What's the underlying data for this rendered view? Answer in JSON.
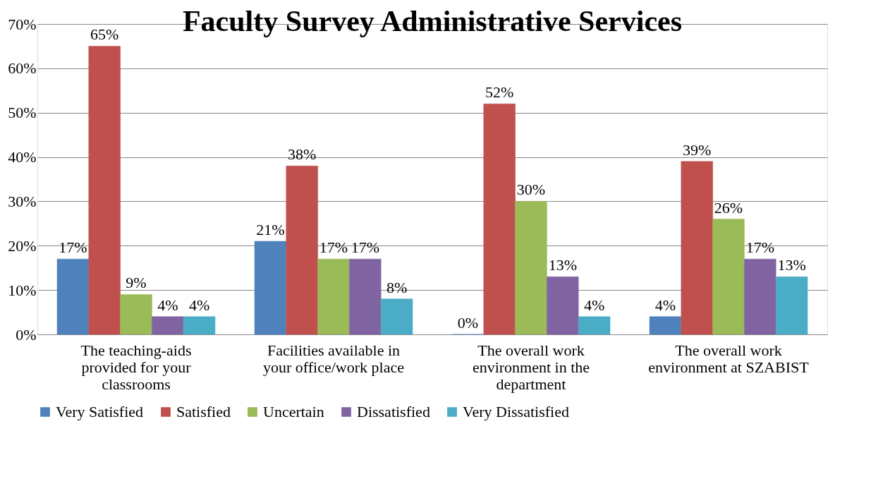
{
  "chart_data": {
    "type": "bar",
    "title": "Faculty Survey Administrative Services",
    "categories": [
      "The teaching-aids provided for your classrooms",
      "Facilities available in your office/work place",
      "The overall work environment in the department",
      "The overall work environment at SZABIST"
    ],
    "series": [
      {
        "name": "Very Satisfied",
        "color": "#4f81bd",
        "values": [
          17,
          21,
          0,
          4
        ],
        "value_labels": [
          "17%",
          "21%",
          "0%",
          "4%"
        ]
      },
      {
        "name": "Satisfied",
        "color": "#c0504d",
        "values": [
          65,
          38,
          52,
          39
        ],
        "value_labels": [
          "65%",
          "38%",
          "52%",
          "39%"
        ]
      },
      {
        "name": "Uncertain",
        "color": "#9bbb59",
        "values": [
          9,
          17,
          30,
          26
        ],
        "value_labels": [
          "9%",
          "17%",
          "30%",
          "26%"
        ]
      },
      {
        "name": "Dissatisfied",
        "color": "#8064a2",
        "values": [
          4,
          17,
          13,
          17
        ],
        "value_labels": [
          "4%",
          "17%",
          "13%",
          "17%"
        ]
      },
      {
        "name": "Very Dissatisfied",
        "color": "#4bacc6",
        "values": [
          4,
          8,
          4,
          13
        ],
        "value_labels": [
          "4%",
          "8%",
          "4%",
          "13%"
        ]
      }
    ],
    "ylim": [
      0,
      70
    ],
    "yticks": [
      {
        "value": 0,
        "label": "0%"
      },
      {
        "value": 10,
        "label": "10%"
      },
      {
        "value": 20,
        "label": "20%"
      },
      {
        "value": 30,
        "label": "30%"
      },
      {
        "value": 40,
        "label": "40%"
      },
      {
        "value": 50,
        "label": "50%"
      },
      {
        "value": 60,
        "label": "60%"
      },
      {
        "value": 70,
        "label": "70%"
      }
    ],
    "grid": "y",
    "legend": "bottom"
  }
}
